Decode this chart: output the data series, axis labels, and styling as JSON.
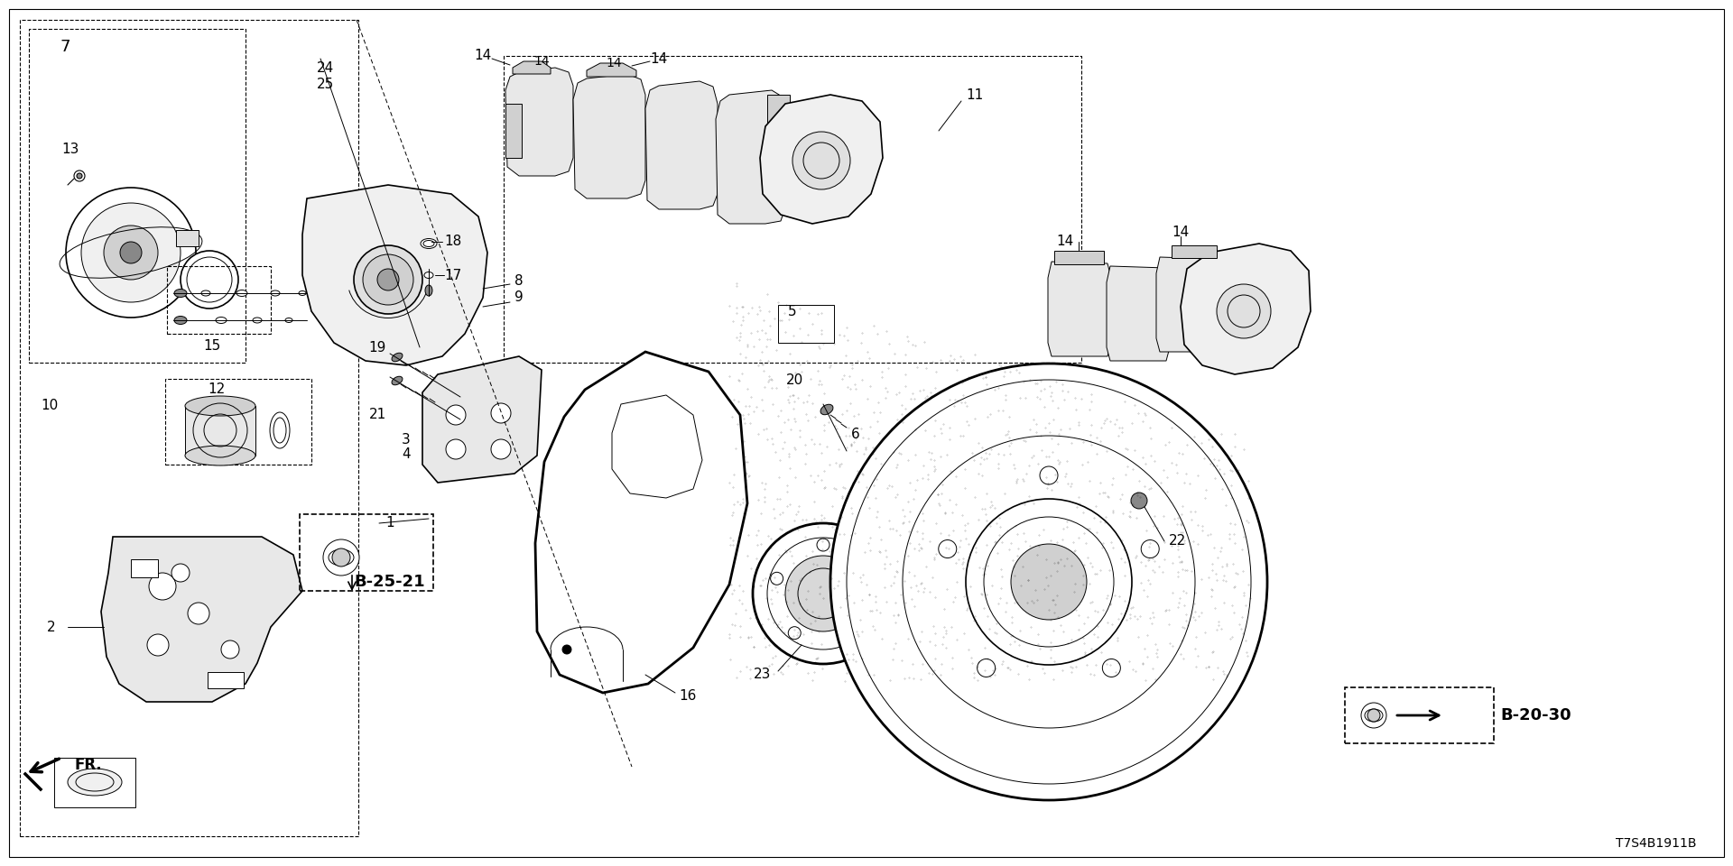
{
  "background_color": "#ffffff",
  "line_color": "#000000",
  "fig_width": 19.2,
  "fig_height": 9.6,
  "dpi": 100,
  "part_code": "T7S4B1911B",
  "ref_b2521_label": "B-25-21",
  "ref_b2030_label": "B-20-30",
  "fr_label": "FR."
}
